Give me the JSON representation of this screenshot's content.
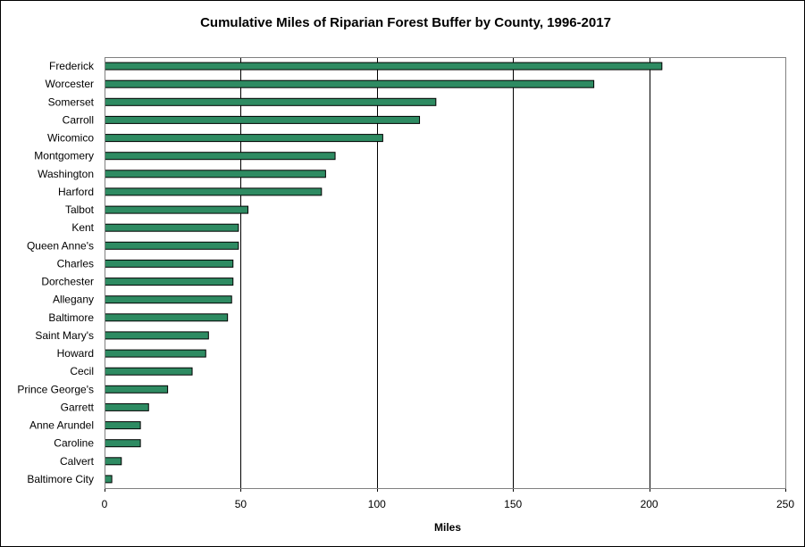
{
  "chart_data": {
    "type": "bar",
    "orientation": "horizontal",
    "title": "Cumulative Miles of Riparian Forest Buffer by County, 1996-2017",
    "xlabel": "Miles",
    "ylabel": "",
    "xlim": [
      0,
      250
    ],
    "xticks": [
      "0",
      "50",
      "100",
      "150",
      "200",
      "250"
    ],
    "grid": "vertical",
    "bar_color": "#2e8b62",
    "categories": [
      "Frederick",
      "Worcester",
      "Somerset",
      "Carroll",
      "Wicomico",
      "Montgomery",
      "Washington",
      "Harford",
      "Talbot",
      "Kent",
      "Queen Anne's",
      "Charles",
      "Dorchester",
      "Allegany",
      "Baltimore",
      "Saint Mary's",
      "Howard",
      "Cecil",
      "Prince George's",
      "Garrett",
      "Anne Arundel",
      "Caroline",
      "Calvert",
      "Baltimore City"
    ],
    "values": [
      204.5,
      179.5,
      121.5,
      115.5,
      102,
      84.5,
      81,
      79.5,
      52.5,
      49,
      49,
      47,
      47,
      46.5,
      45,
      38,
      37,
      32,
      23,
      16,
      13,
      13,
      6,
      2.5
    ]
  }
}
